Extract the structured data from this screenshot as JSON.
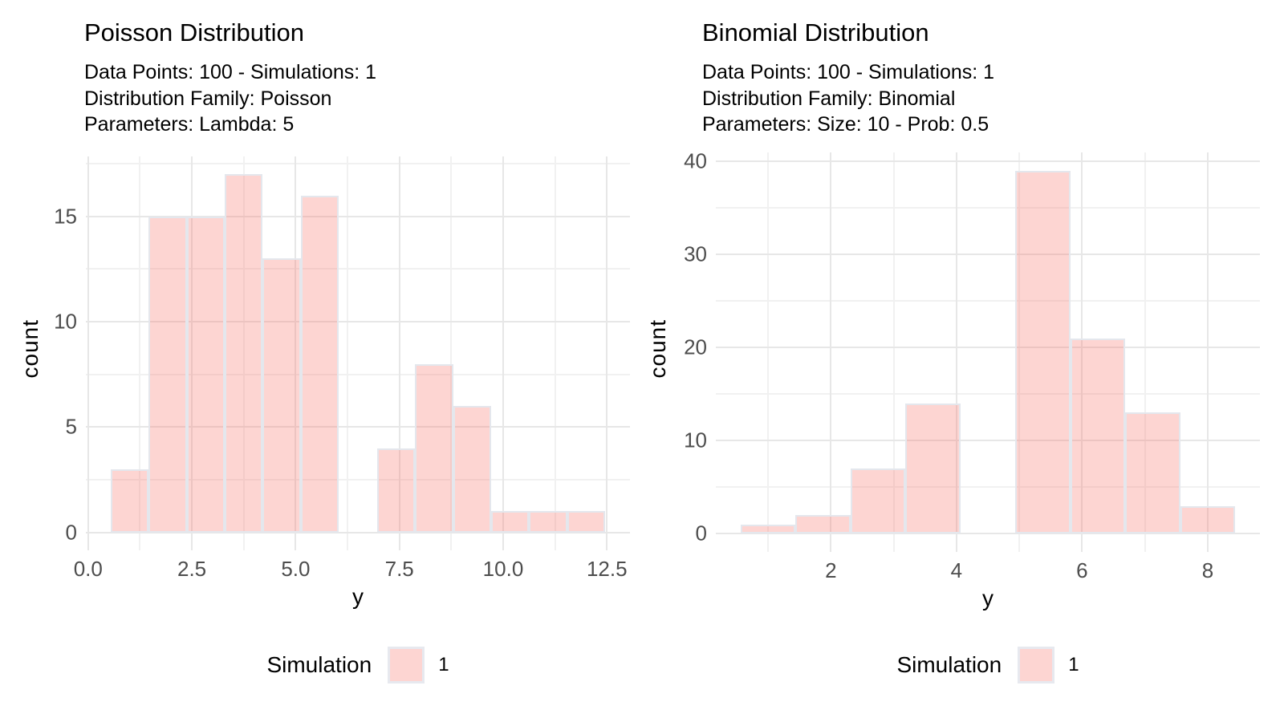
{
  "theme": {
    "bar_fill": "rgba(248,118,109,0.31)",
    "bar_border": "#e4e7ed",
    "grid_major": "#e7e7e7",
    "grid_minor": "#f1f1f1",
    "axis_text_color": "#4d4d4d",
    "title_text_color": "#000000",
    "background": "#ffffff"
  },
  "chart_data": [
    {
      "type": "bar",
      "subtype": "histogram",
      "title": "Poisson Distribution",
      "subtitle_lines": [
        "Data Points: 100 - Simulations: 1",
        "Distribution Family: Poisson",
        "Parameters: Lambda: 5"
      ],
      "xlabel": "y",
      "ylabel": "count",
      "legend_title": "Simulation",
      "legend_items": [
        {
          "label": "1"
        }
      ],
      "bin_start": 0.542,
      "bin_width": 0.9167,
      "counts": [
        3,
        15,
        15,
        17,
        13,
        16,
        0,
        4,
        8,
        6,
        1,
        1,
        1
      ],
      "x_ticks": {
        "values": [
          0,
          2.5,
          5,
          7.5,
          10,
          12.5
        ],
        "labels": [
          "0.0",
          "2.5",
          "5.0",
          "7.5",
          "10.0",
          "12.5"
        ]
      },
      "x_minor": [
        1.25,
        3.75,
        6.25,
        8.75,
        11.25
      ],
      "y_ticks": {
        "values": [
          0,
          5,
          10,
          15
        ],
        "labels": [
          "0",
          "5",
          "10",
          "15"
        ]
      },
      "y_minor": [
        2.5,
        7.5,
        12.5,
        17.5
      ],
      "x_domain": [
        -0.054,
        13.055
      ],
      "y_domain": [
        -0.85,
        17.85
      ],
      "grid": true,
      "legend_position": "bottom"
    },
    {
      "type": "bar",
      "subtype": "histogram",
      "title": "Binomial Distribution",
      "subtitle_lines": [
        "Data Points: 100 - Simulations: 1",
        "Distribution Family: Binomial",
        "Parameters: Size: 10 - Prob: 0.5"
      ],
      "xlabel": "y",
      "ylabel": "count",
      "legend_title": "Simulation",
      "legend_items": [
        {
          "label": "1"
        }
      ],
      "bin_start": 0.5625,
      "bin_width": 0.875,
      "counts": [
        1,
        2,
        7,
        14,
        0,
        39,
        21,
        13,
        3
      ],
      "x_ticks": {
        "values": [
          2,
          4,
          6,
          8
        ],
        "labels": [
          "2",
          "4",
          "6",
          "8"
        ]
      },
      "x_minor": [
        1,
        3,
        5,
        7
      ],
      "y_ticks": {
        "values": [
          0,
          10,
          20,
          30,
          40
        ],
        "labels": [
          "0",
          "10",
          "20",
          "30",
          "40"
        ]
      },
      "y_minor": [
        5,
        15,
        25,
        35
      ],
      "x_domain": [
        0.169,
        8.831
      ],
      "y_domain": [
        -1.95,
        40.95
      ],
      "grid": true,
      "legend_position": "bottom"
    }
  ]
}
